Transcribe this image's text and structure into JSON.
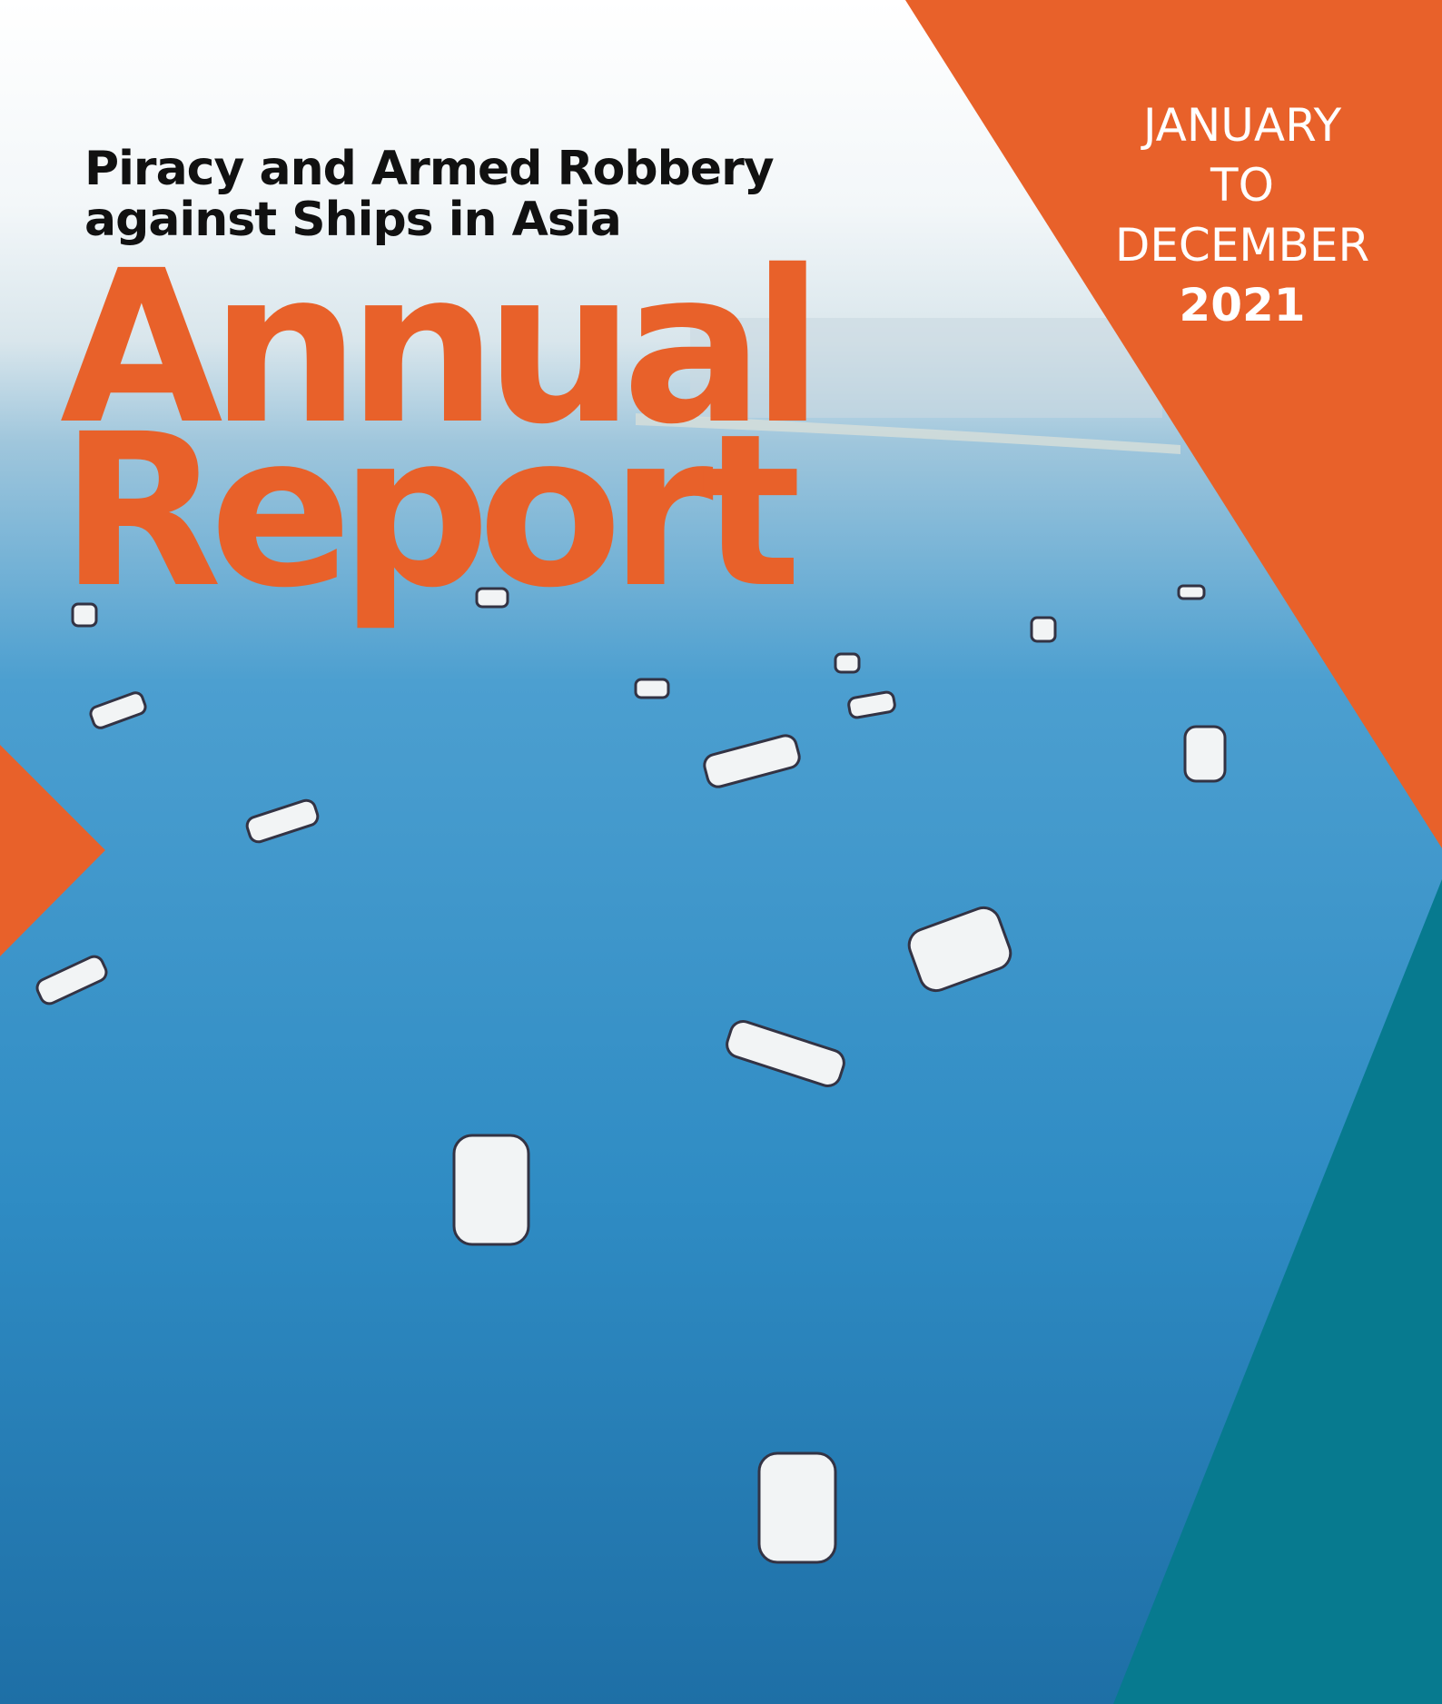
{
  "subtitle": [
    "Piracy and Armed Robbery",
    "against Ships in Asia"
  ],
  "title": [
    "Annual",
    "Report"
  ],
  "period": {
    "lines": [
      "JANUARY",
      "TO",
      "DECEMBER"
    ],
    "year": "2021"
  }
}
